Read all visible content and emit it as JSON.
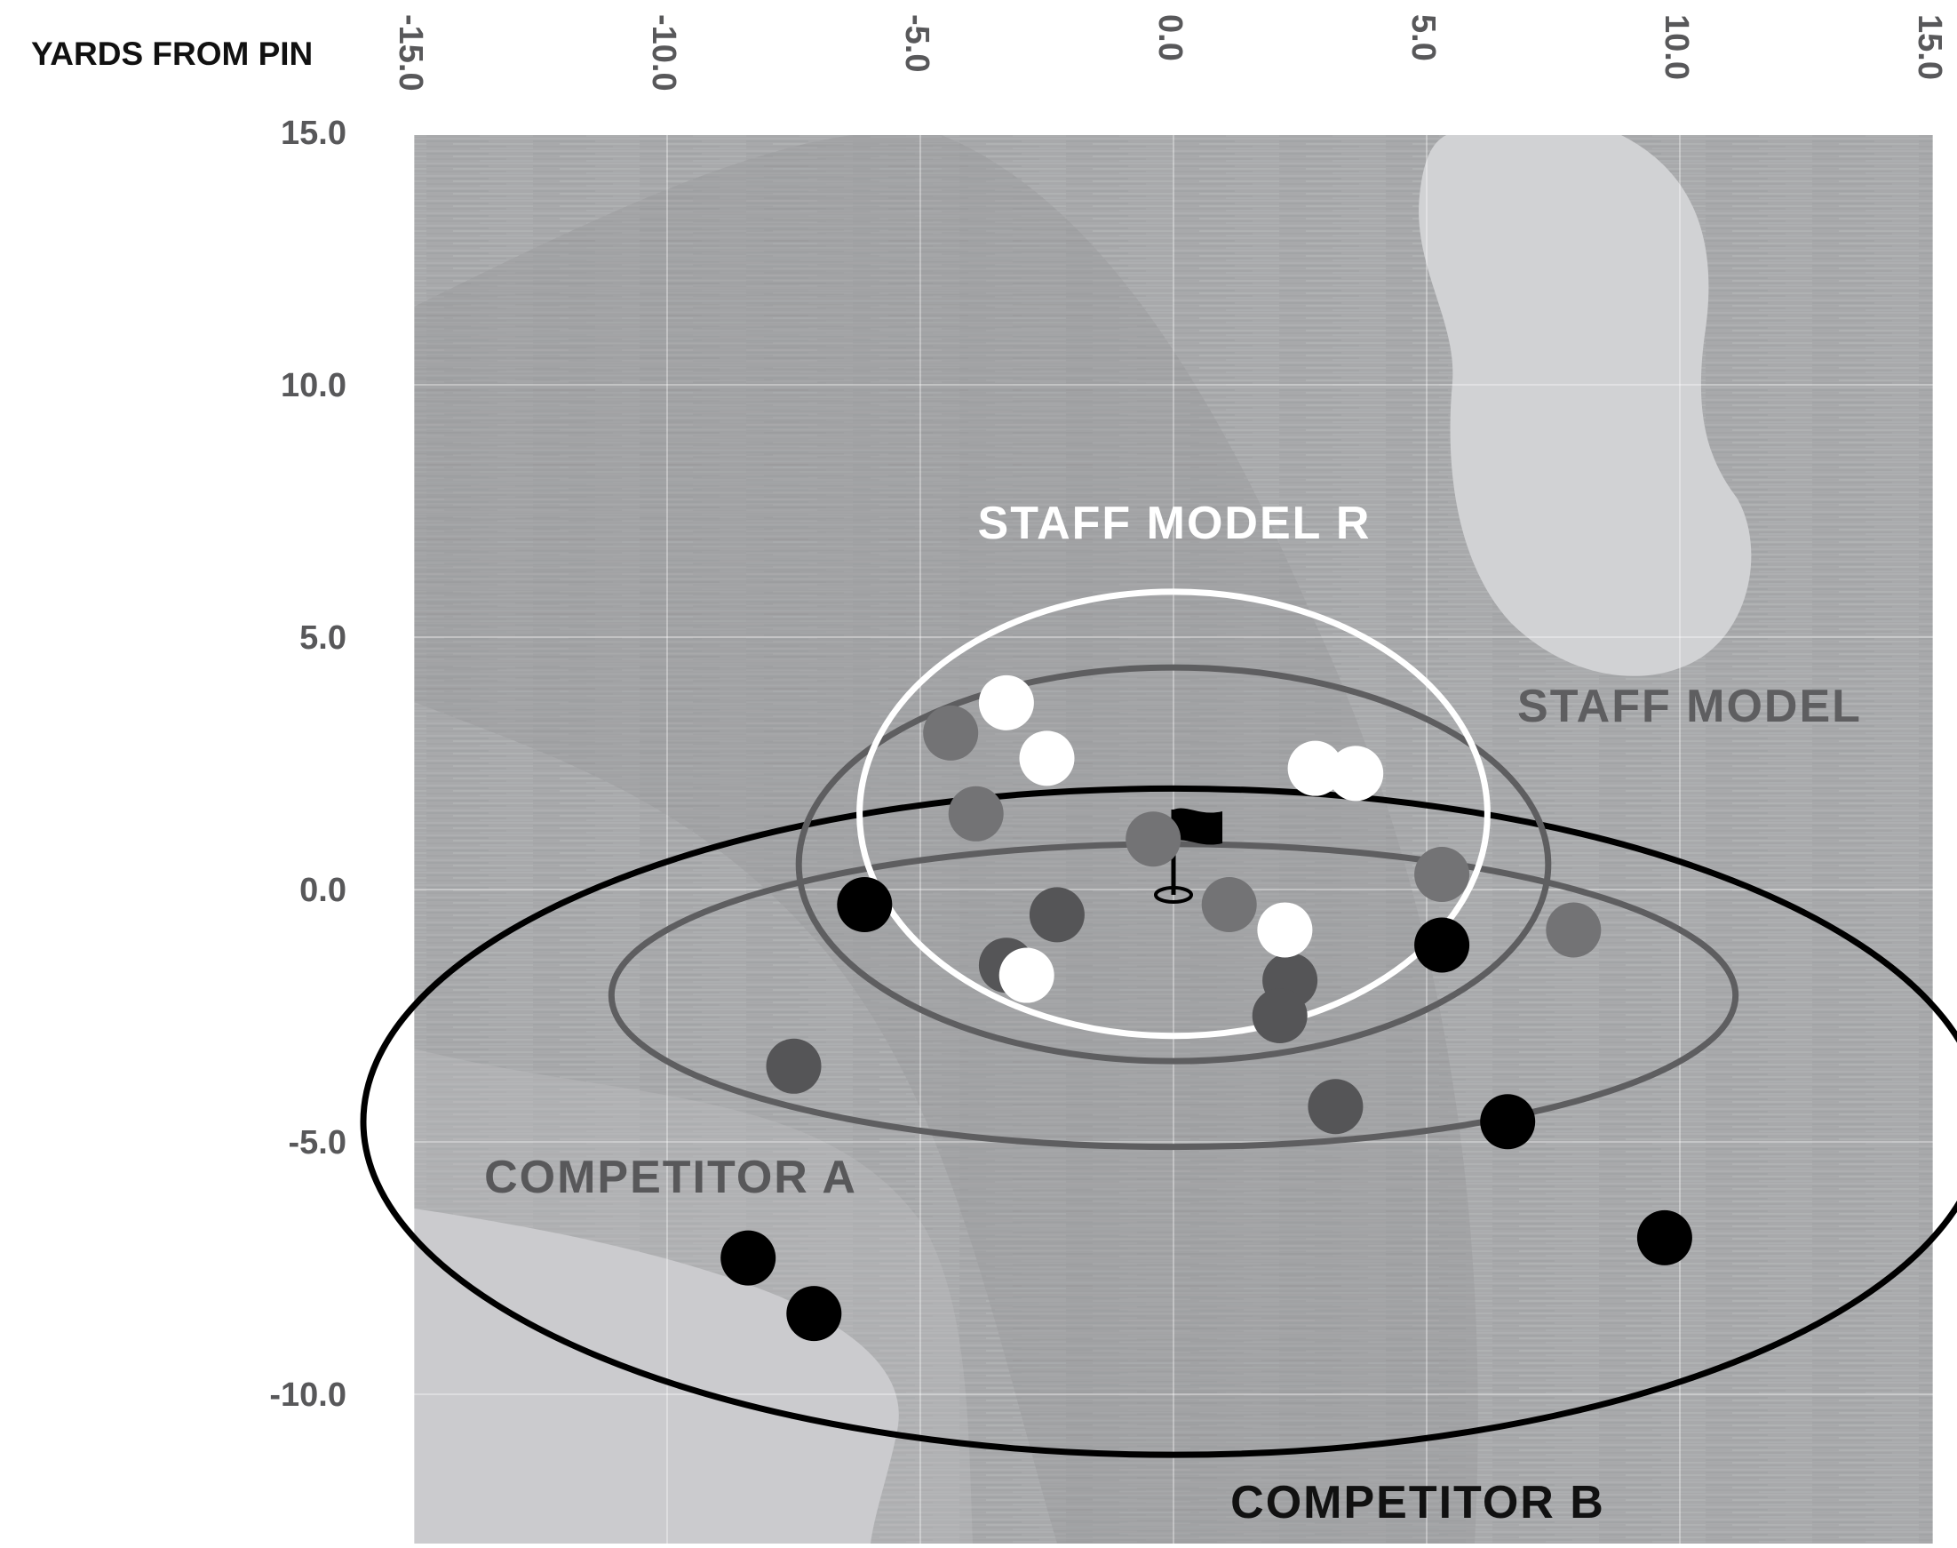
{
  "chart_data": {
    "type": "scatter",
    "title": "",
    "ylabel": "",
    "xlabel": "YARDS FROM PIN",
    "xlim": [
      -15,
      15
    ],
    "ylim": [
      -13,
      15
    ],
    "x_ticks": [
      "-15.0",
      "-10.0",
      "-5.0",
      "0.0",
      "5.0",
      "10.0",
      "15.0"
    ],
    "y_ticks": [
      "15.0",
      "10.0",
      "5.0",
      "0.0",
      "-5.0",
      "-10.0"
    ],
    "x_tick_values": [
      -15,
      -10,
      -5,
      0,
      5,
      10,
      15
    ],
    "y_tick_values": [
      15,
      10,
      5,
      0,
      -5,
      -10
    ],
    "grid": true,
    "pin": {
      "x": 0,
      "y": 0
    },
    "series": [
      {
        "name": "STAFF MODEL R",
        "color": "#ffffff",
        "ellipse": {
          "cx": 0,
          "cy": 1.5,
          "rx": 6.2,
          "ry": 4.4
        },
        "points": [
          {
            "x": -3.3,
            "y": 3.7
          },
          {
            "x": -2.5,
            "y": 2.6
          },
          {
            "x": 2.8,
            "y": 2.4
          },
          {
            "x": 3.6,
            "y": 2.3
          },
          {
            "x": 2.2,
            "y": -0.8
          },
          {
            "x": -2.9,
            "y": -1.7
          }
        ]
      },
      {
        "name": "STAFF MODEL",
        "color": "#5e5e60",
        "ellipse": {
          "cx": 0,
          "cy": 0.5,
          "rx": 7.4,
          "ry": 3.9
        },
        "points": [
          {
            "x": -4.4,
            "y": 3.1
          },
          {
            "x": -3.9,
            "y": 1.5
          },
          {
            "x": -0.4,
            "y": 1.0
          },
          {
            "x": 1.1,
            "y": -0.3
          },
          {
            "x": 5.3,
            "y": 0.3
          },
          {
            "x": 7.9,
            "y": -0.8
          },
          {
            "x": 2.3,
            "y": -1.8
          },
          {
            "x": 2.1,
            "y": -2.5
          },
          {
            "x": -3.3,
            "y": -1.5
          },
          {
            "x": -2.3,
            "y": -0.5
          },
          {
            "x": -7.5,
            "y": -3.5
          },
          {
            "x": 3.2,
            "y": -4.3
          }
        ]
      },
      {
        "name": "COMPETITOR A",
        "color": "#5e5e60",
        "ellipse": {
          "cx": 0,
          "cy": -2.1,
          "rx": 11.1,
          "ry": 3.0
        },
        "points": []
      },
      {
        "name": "COMPETITOR B",
        "color": "#000000",
        "ellipse": {
          "cx": 0,
          "cy": -4.6,
          "rx": 16.0,
          "ry": 6.6
        },
        "points": [
          {
            "x": -6.1,
            "y": -0.3
          },
          {
            "x": 5.3,
            "y": -1.1
          },
          {
            "x": 6.6,
            "y": -4.6
          },
          {
            "x": 9.7,
            "y": -6.9
          },
          {
            "x": -8.4,
            "y": -7.3
          },
          {
            "x": -7.1,
            "y": -8.4
          }
        ]
      }
    ]
  }
}
